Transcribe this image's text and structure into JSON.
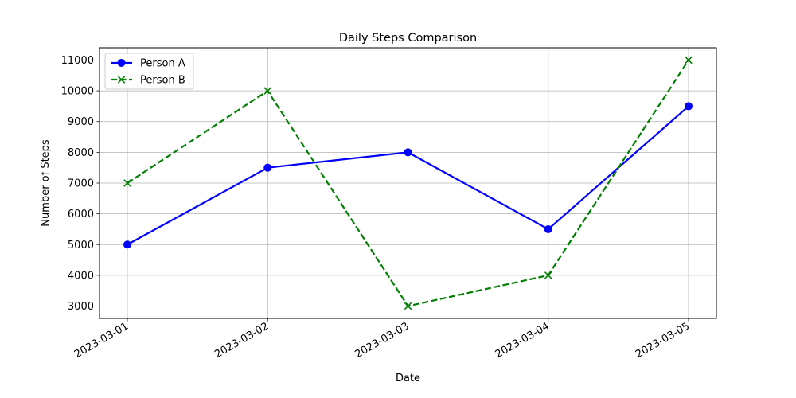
{
  "chart_data": {
    "type": "line",
    "title": "Daily Steps Comparison",
    "xlabel": "Date",
    "ylabel": "Number of Steps",
    "categories": [
      "2023-03-01",
      "2023-03-02",
      "2023-03-03",
      "2023-03-04",
      "2023-03-05"
    ],
    "yticks": [
      3000,
      4000,
      5000,
      6000,
      7000,
      8000,
      9000,
      10000,
      11000
    ],
    "ylim": [
      2600,
      11400
    ],
    "grid": true,
    "legend_position": "top-left",
    "series": [
      {
        "name": "Person A",
        "values": [
          5000,
          7500,
          8000,
          5500,
          9500
        ],
        "color": "#0000ff",
        "line_style": "solid",
        "marker": "circle"
      },
      {
        "name": "Person B",
        "values": [
          7000,
          10000,
          3000,
          4000,
          11000
        ],
        "color": "#008000",
        "line_style": "dashed",
        "marker": "x"
      }
    ]
  }
}
